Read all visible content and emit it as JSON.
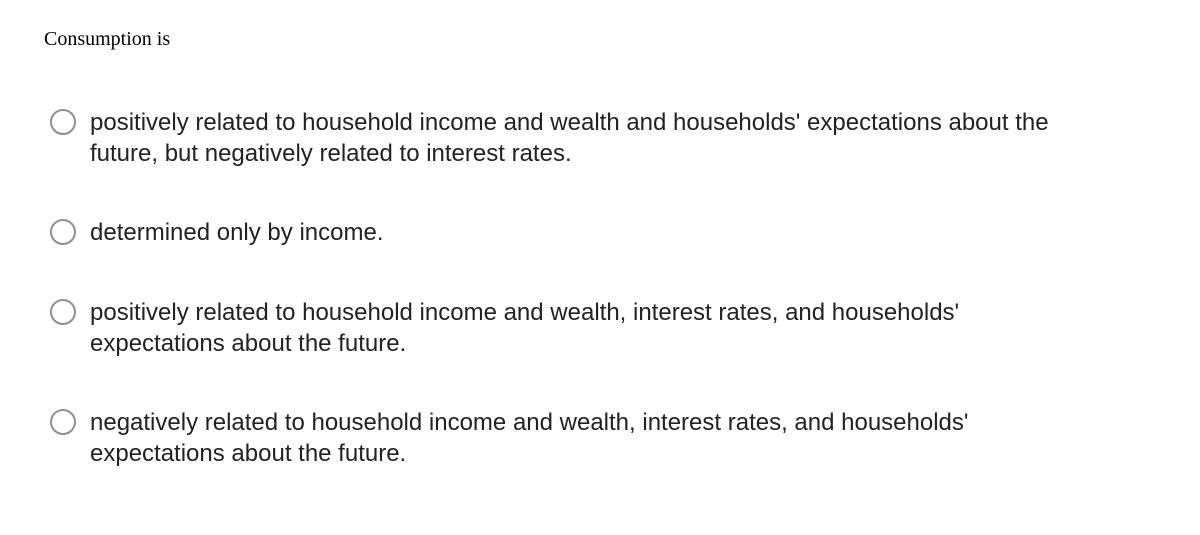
{
  "question": {
    "stem": "Consumption is",
    "stem_font": "serif",
    "stem_fontsize": 20,
    "stem_color": "#000000"
  },
  "options": [
    {
      "text": "positively related to household income and wealth and households' expectations about the future, but negatively related to interest rates.",
      "selected": false
    },
    {
      "text": "determined only by income.",
      "selected": false
    },
    {
      "text": "positively related to household income and wealth, interest rates, and households' expectations about the future.",
      "selected": false
    },
    {
      "text": "negatively related to household income and wealth, interest rates, and households' expectations about the future.",
      "selected": false
    }
  ],
  "style": {
    "option_fontsize": 24,
    "option_color": "#222222",
    "radio_border_color": "#8f8f8f",
    "radio_size": 26,
    "background": "#ffffff",
    "gap_between_options": 48
  }
}
